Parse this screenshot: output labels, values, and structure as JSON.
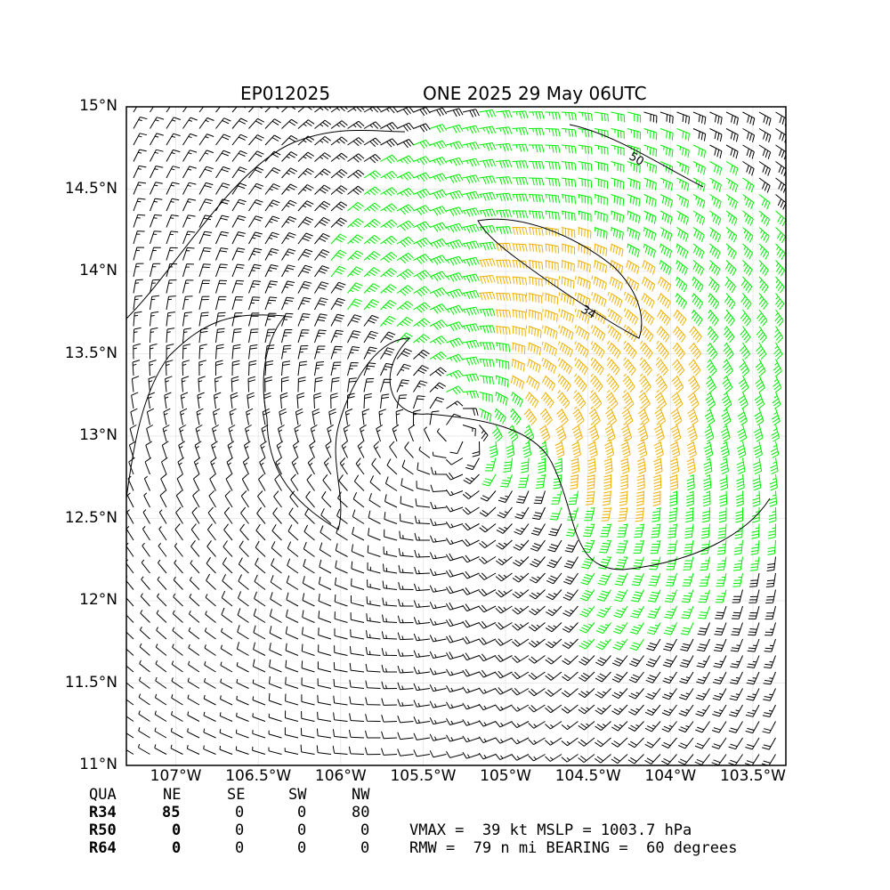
{
  "title": {
    "storm_id": "EP012025",
    "storm_info": "ONE 2025 29 May 06UTC"
  },
  "axes": {
    "lat_ticks": [
      "15°N",
      "14.5°N",
      "14°N",
      "13.5°N",
      "13°N",
      "12.5°N",
      "12°N",
      "11.5°N",
      "11°N"
    ],
    "lon_ticks": [
      "107°W",
      "106.5°W",
      "106°W",
      "105.5°W",
      "105°W",
      "104.5°W",
      "104°W",
      "103.5°W"
    ],
    "lat_range": [
      11.0,
      15.0
    ],
    "lon_range": [
      -107.3,
      -103.3
    ]
  },
  "wind_field": {
    "center": {
      "lat": 13.0,
      "lon": -105.3
    },
    "barb_colors": {
      "below_34kt": "#000000",
      "34_to_49kt": "#00ee00",
      "50_to_63kt": "#f0b000"
    },
    "contours": [
      {
        "label": "34",
        "level_kt": 34
      },
      {
        "label": "50",
        "level_kt": 50
      }
    ]
  },
  "quadrant_table": {
    "header": [
      "QUA",
      "NE",
      "SE",
      "SW",
      "NW"
    ],
    "rows": [
      {
        "name": "R34",
        "values": [
          "85",
          "0",
          "0",
          "80"
        ]
      },
      {
        "name": "R50",
        "values": [
          "0",
          "0",
          "0",
          "0"
        ]
      },
      {
        "name": "R64",
        "values": [
          "0",
          "0",
          "0",
          "0"
        ]
      }
    ]
  },
  "stats": {
    "line1": "VMAX =  39 kt MSLP = 1003.7 hPa",
    "line2": "RMW =  79 n mi BEARING =  60 degrees"
  }
}
